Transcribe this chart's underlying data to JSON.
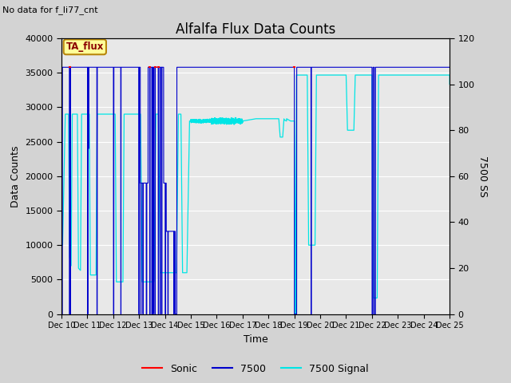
{
  "title": "Alfalfa Flux Data Counts",
  "subtitle": "No data for f_li77_cnt",
  "xlabel": "Time",
  "ylabel_left": "Data Counts",
  "ylabel_right": "7500 SS",
  "ylim_left": [
    0,
    40000
  ],
  "ylim_right": [
    0,
    120
  ],
  "yticks_left": [
    0,
    5000,
    10000,
    15000,
    20000,
    25000,
    30000,
    35000,
    40000
  ],
  "yticks_right": [
    0,
    20,
    40,
    60,
    80,
    100,
    120
  ],
  "background_color": "#d3d3d3",
  "plot_bg_color": "#e8e8e8",
  "legend_box_facecolor": "#ffff99",
  "legend_box_edgecolor": "#b8860b",
  "legend_text": "TA_flux",
  "colors": {
    "sonic": "#ff0000",
    "7500": "#0000cc",
    "7500_signal": "#00e5e5"
  },
  "xtick_labels": [
    "Dec 10",
    "Dec 11",
    "Dec 12",
    "Dec 13",
    "Dec 14",
    "Dec 15",
    "Dec 16",
    "Dec 17",
    "Dec 18",
    "Dec 19",
    "Dec 20",
    "Dec 21",
    "Dec 22",
    "Dec 23",
    "Dec 24",
    "Dec 25"
  ],
  "figsize": [
    6.4,
    4.8
  ],
  "dpi": 100
}
